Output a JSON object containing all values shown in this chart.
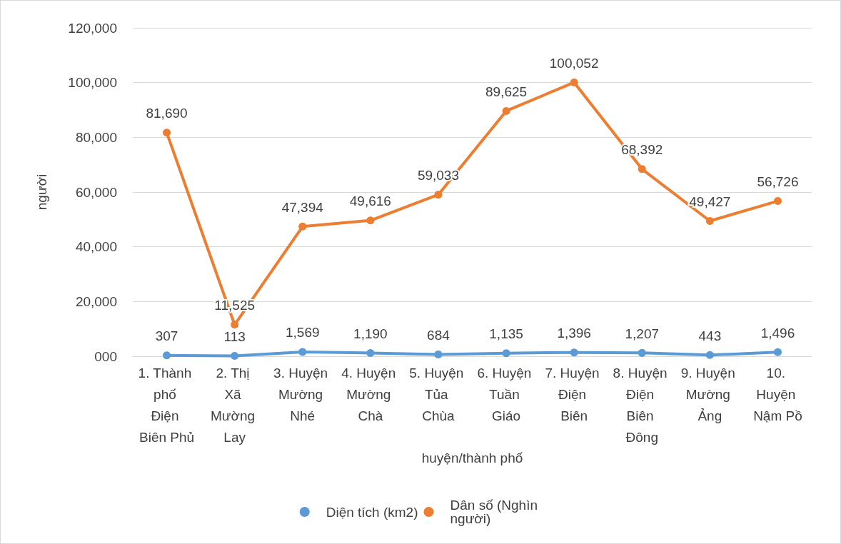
{
  "chart_data": {
    "type": "line",
    "xlabel": "huyện/thành phố",
    "ylabel": "người",
    "categories": [
      "1. Thành phố Điện Biên Phủ",
      "2. Thị Xã Mường Lay",
      "3. Huyện Mường Nhé",
      "4. Huyện Mường Chà",
      "5. Huyện Tủa Chùa",
      "6. Huyện Tuần Giáo",
      "7. Huyện Điện Biên",
      "8. Huyện Điện Biên Đông",
      "9. Huyện Mường Ảng",
      "10. Huyện Nậm Pồ"
    ],
    "series": [
      {
        "name": "Diện tích (km2)",
        "color": "#5b9bd5",
        "values": [
          307,
          113,
          1569,
          1190,
          684,
          1135,
          1396,
          1207,
          443,
          1496
        ],
        "value_labels": [
          "307",
          "113",
          "1,569",
          "1,190",
          "684",
          "1,135",
          "1,396",
          "1,207",
          "443",
          "1,496"
        ]
      },
      {
        "name": "Dân số (Nghìn người)",
        "color": "#ed7d31",
        "values": [
          81690,
          11525,
          47394,
          49616,
          59033,
          89625,
          100052,
          68392,
          49427,
          56726
        ],
        "value_labels": [
          "81,690",
          "11,525",
          "47,394",
          "49,616",
          "59,033",
          "89,625",
          "100,052",
          "68,392",
          "49,427",
          "56,726"
        ]
      }
    ],
    "ylim": [
      0,
      120000
    ],
    "yticks": [
      {
        "value": 0,
        "label": "000"
      },
      {
        "value": 20000,
        "label": "20,000"
      },
      {
        "value": 40000,
        "label": "40,000"
      },
      {
        "value": 60000,
        "label": "60,000"
      },
      {
        "value": 80000,
        "label": "80,000"
      },
      {
        "value": 100000,
        "label": "100,000"
      },
      {
        "value": 120000,
        "label": "120,000"
      }
    ],
    "grid": "y",
    "legend": "bottom",
    "marker": "circle",
    "line_style": "solid"
  }
}
